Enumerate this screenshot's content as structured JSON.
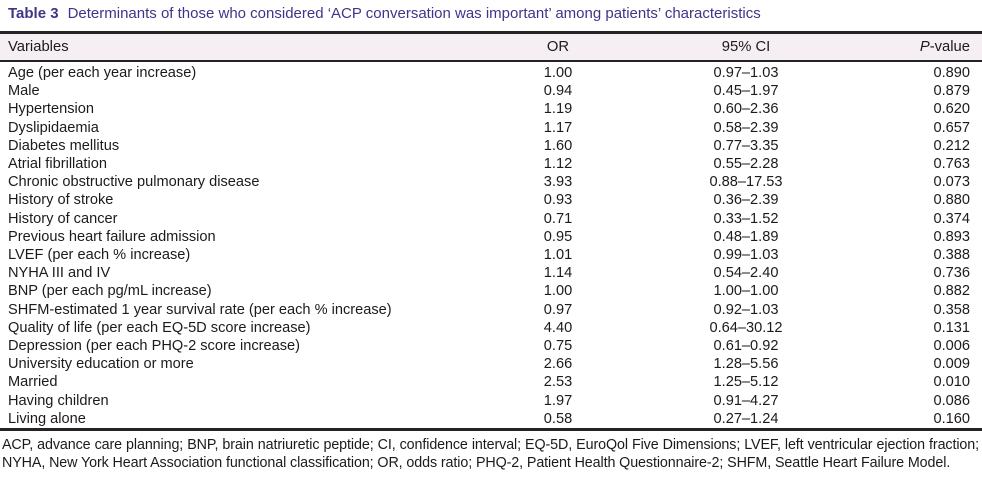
{
  "caption": {
    "label": "Table 3",
    "text": "Determinants of those who considered ‘ACP conversation was important’ among patients’ characteristics"
  },
  "colors": {
    "caption_text": "#3e3589",
    "header_background": "#f5eff3",
    "rule": "#262224"
  },
  "table": {
    "headers": {
      "variables": "Variables",
      "or": "OR",
      "ci": "95% CI",
      "p_italic": "P",
      "p_rest": "-value"
    },
    "rows": [
      {
        "variable": "Age (per each year increase)",
        "or": "1.00",
        "ci": "0.97–1.03",
        "p": "0.890"
      },
      {
        "variable": "Male",
        "or": "0.94",
        "ci": "0.45–1.97",
        "p": "0.879"
      },
      {
        "variable": "Hypertension",
        "or": "1.19",
        "ci": "0.60–2.36",
        "p": "0.620"
      },
      {
        "variable": "Dyslipidaemia",
        "or": "1.17",
        "ci": "0.58–2.39",
        "p": "0.657"
      },
      {
        "variable": "Diabetes mellitus",
        "or": "1.60",
        "ci": "0.77–3.35",
        "p": "0.212"
      },
      {
        "variable": "Atrial fibrillation",
        "or": "1.12",
        "ci": "0.55–2.28",
        "p": "0.763"
      },
      {
        "variable": "Chronic obstructive pulmonary disease",
        "or": "3.93",
        "ci": "0.88–17.53",
        "p": "0.073"
      },
      {
        "variable": "History of stroke",
        "or": "0.93",
        "ci": "0.36–2.39",
        "p": "0.880"
      },
      {
        "variable": "History of cancer",
        "or": "0.71",
        "ci": "0.33–1.52",
        "p": "0.374"
      },
      {
        "variable": "Previous heart failure admission",
        "or": "0.95",
        "ci": "0.48–1.89",
        "p": "0.893"
      },
      {
        "variable": "LVEF (per each % increase)",
        "or": "1.01",
        "ci": "0.99–1.03",
        "p": "0.388"
      },
      {
        "variable": "NYHA III and IV",
        "or": "1.14",
        "ci": "0.54–2.40",
        "p": "0.736"
      },
      {
        "variable": "BNP (per each pg/mL increase)",
        "or": "1.00",
        "ci": "1.00–1.00",
        "p": "0.882"
      },
      {
        "variable": "SHFM-estimated 1 year survival rate (per each % increase)",
        "or": "0.97",
        "ci": "0.92–1.03",
        "p": "0.358"
      },
      {
        "variable": "Quality of life (per each EQ-5D score increase)",
        "or": "4.40",
        "ci": "0.64–30.12",
        "p": "0.131"
      },
      {
        "variable": "Depression (per each PHQ-2 score increase)",
        "or": "0.75",
        "ci": "0.61–0.92",
        "p": "0.006"
      },
      {
        "variable": "University education or more",
        "or": "2.66",
        "ci": "1.28–5.56",
        "p": "0.009"
      },
      {
        "variable": "Married",
        "or": "2.53",
        "ci": "1.25–5.12",
        "p": "0.010"
      },
      {
        "variable": "Having children",
        "or": "1.97",
        "ci": "0.91–4.27",
        "p": "0.086"
      },
      {
        "variable": "Living alone",
        "or": "0.58",
        "ci": "0.27–1.24",
        "p": "0.160"
      }
    ]
  },
  "footnote": "ACP, advance care planning; BNP, brain natriuretic peptide; CI, confidence interval; EQ-5D, EuroQol Five Dimensions; LVEF, left ventricular ejection fraction; NYHA, New York Heart Association functional classification; OR, odds ratio; PHQ-2, Patient Health Questionnaire-2; SHFM, Seattle Heart Failure Model."
}
